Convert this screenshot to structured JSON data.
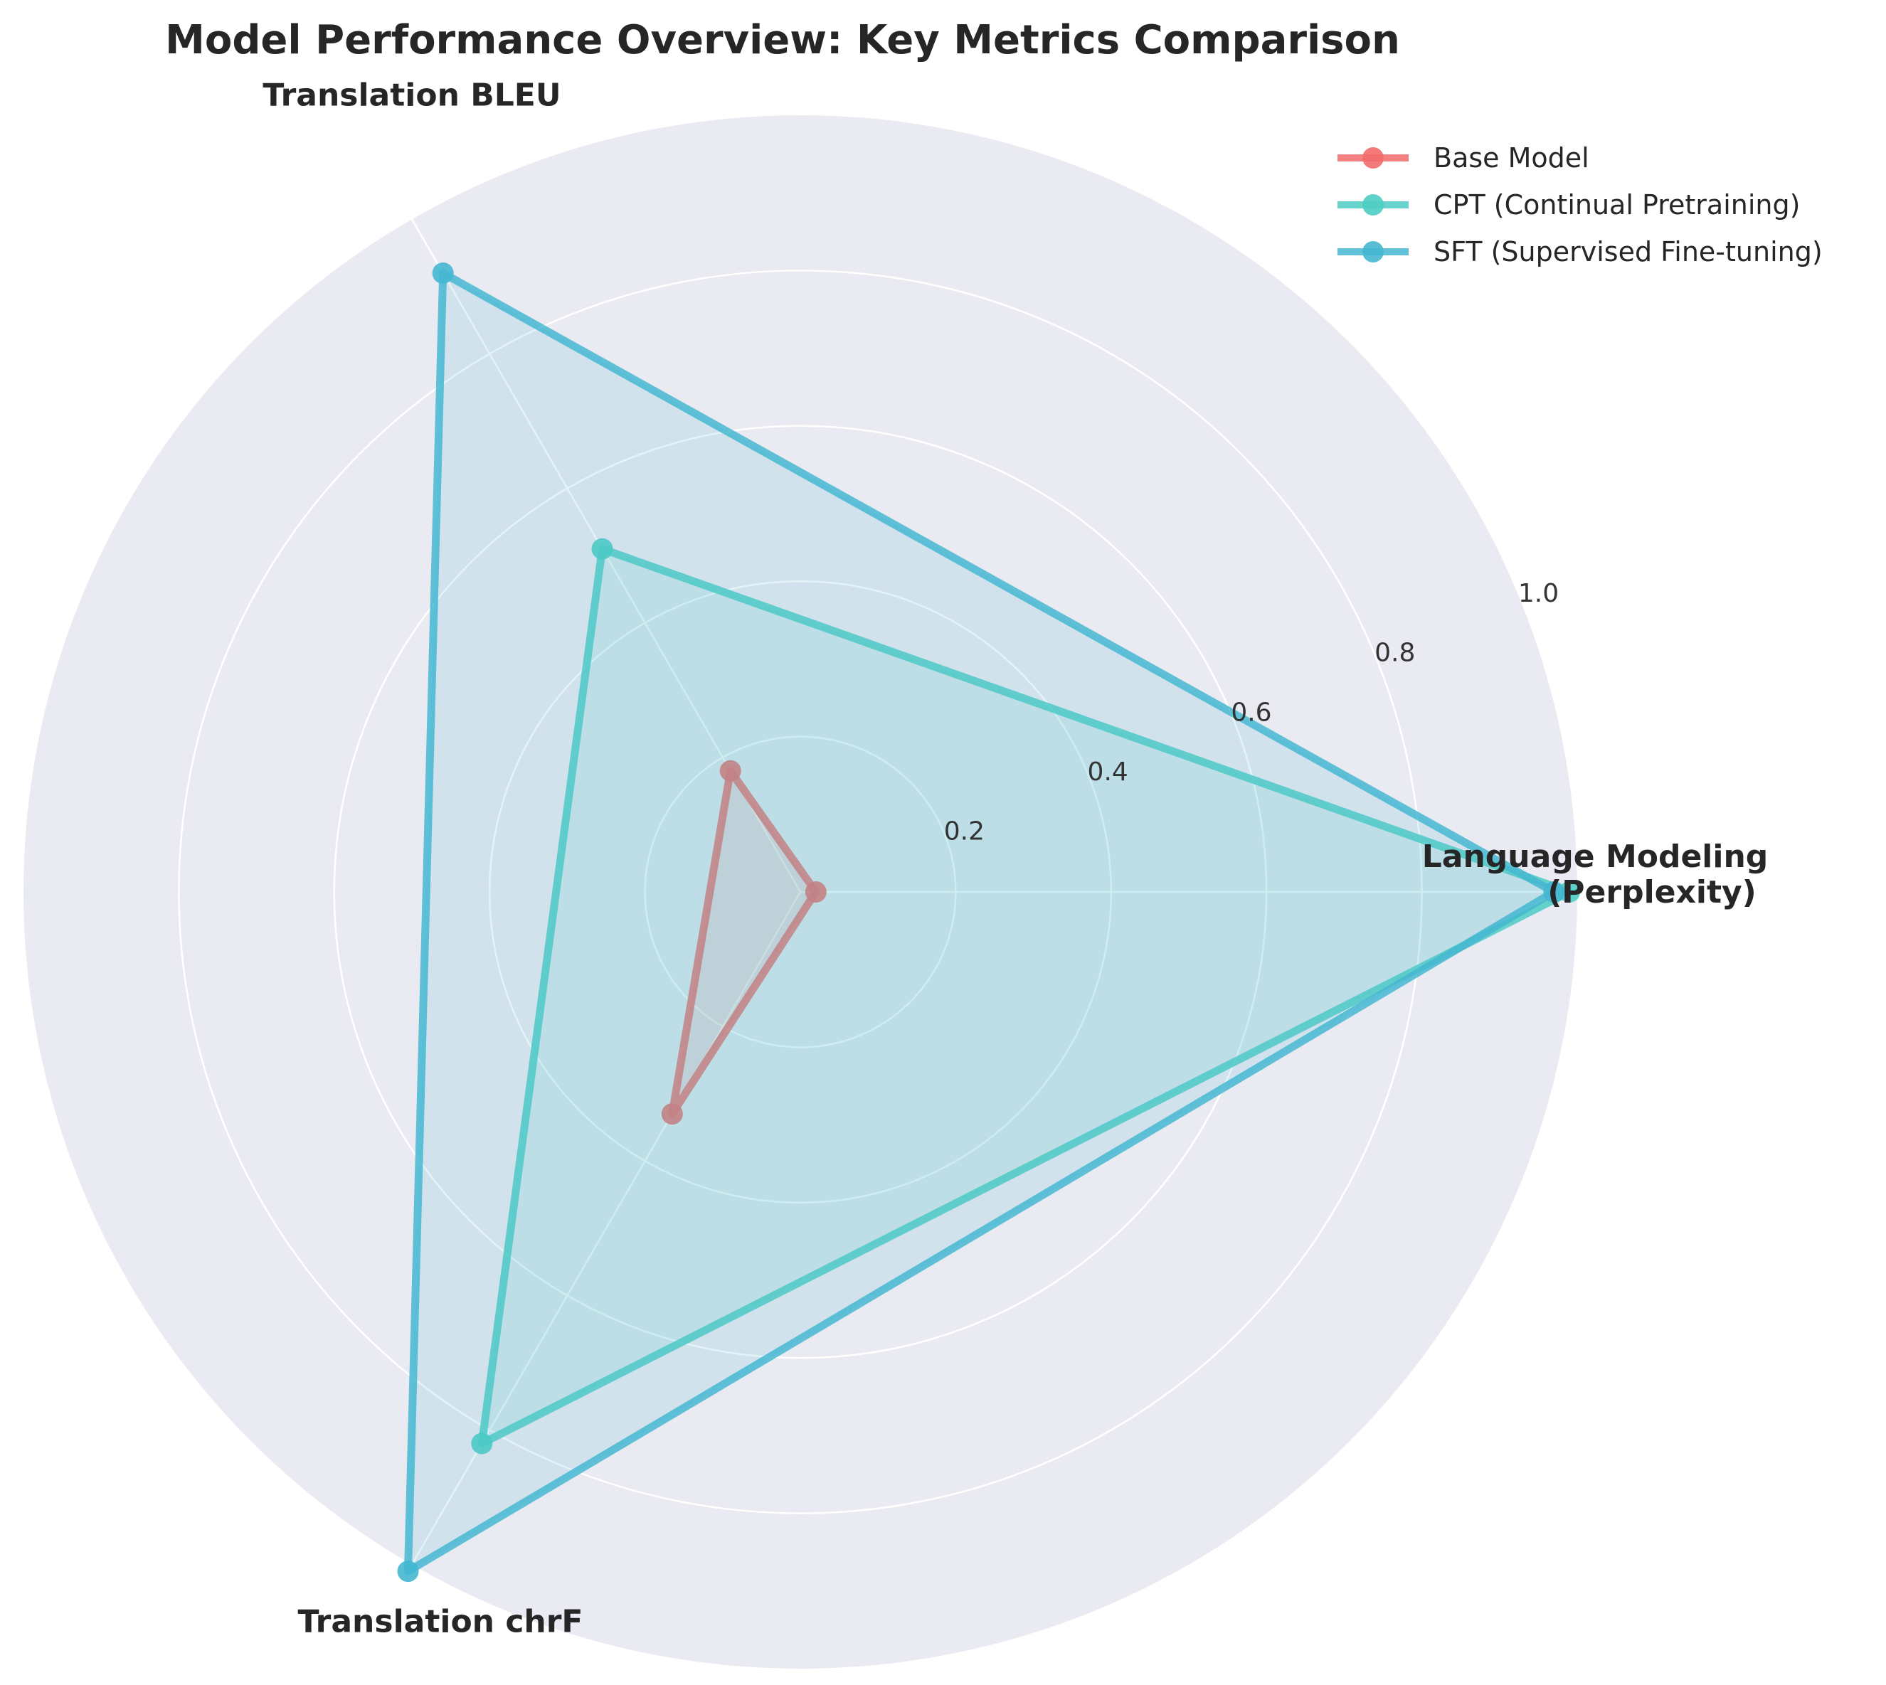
{
  "chart_data": {
    "type": "radar",
    "title": "Model Performance Overview: Key Metrics Comparison",
    "axes": [
      {
        "lines": [
          "Language Modeling",
          "(Perplexity)"
        ]
      },
      {
        "lines": [
          "Translation BLEU"
        ]
      },
      {
        "lines": [
          "Translation chrF"
        ]
      }
    ],
    "radial_ticks": [
      {
        "value": 0.2,
        "label": "0.2"
      },
      {
        "value": 0.4,
        "label": "0.4"
      },
      {
        "value": 0.6,
        "label": "0.6"
      },
      {
        "value": 0.8,
        "label": "0.8"
      },
      {
        "value": 1.0,
        "label": "1.0"
      }
    ],
    "rlim": [
      0,
      1.0
    ],
    "grid": true,
    "legend_position": "top-right",
    "series": [
      {
        "name": "Base Model",
        "color": "#F26B6B",
        "values": [
          0.02,
          0.18,
          0.33
        ]
      },
      {
        "name": "CPT (Continual Pretraining)",
        "color": "#4ECDC4",
        "values": [
          0.99,
          0.51,
          0.82
        ]
      },
      {
        "name": "SFT (Supervised Fine-tuning)",
        "color": "#45B7D1",
        "values": [
          0.97,
          0.92,
          1.01
        ]
      }
    ]
  }
}
